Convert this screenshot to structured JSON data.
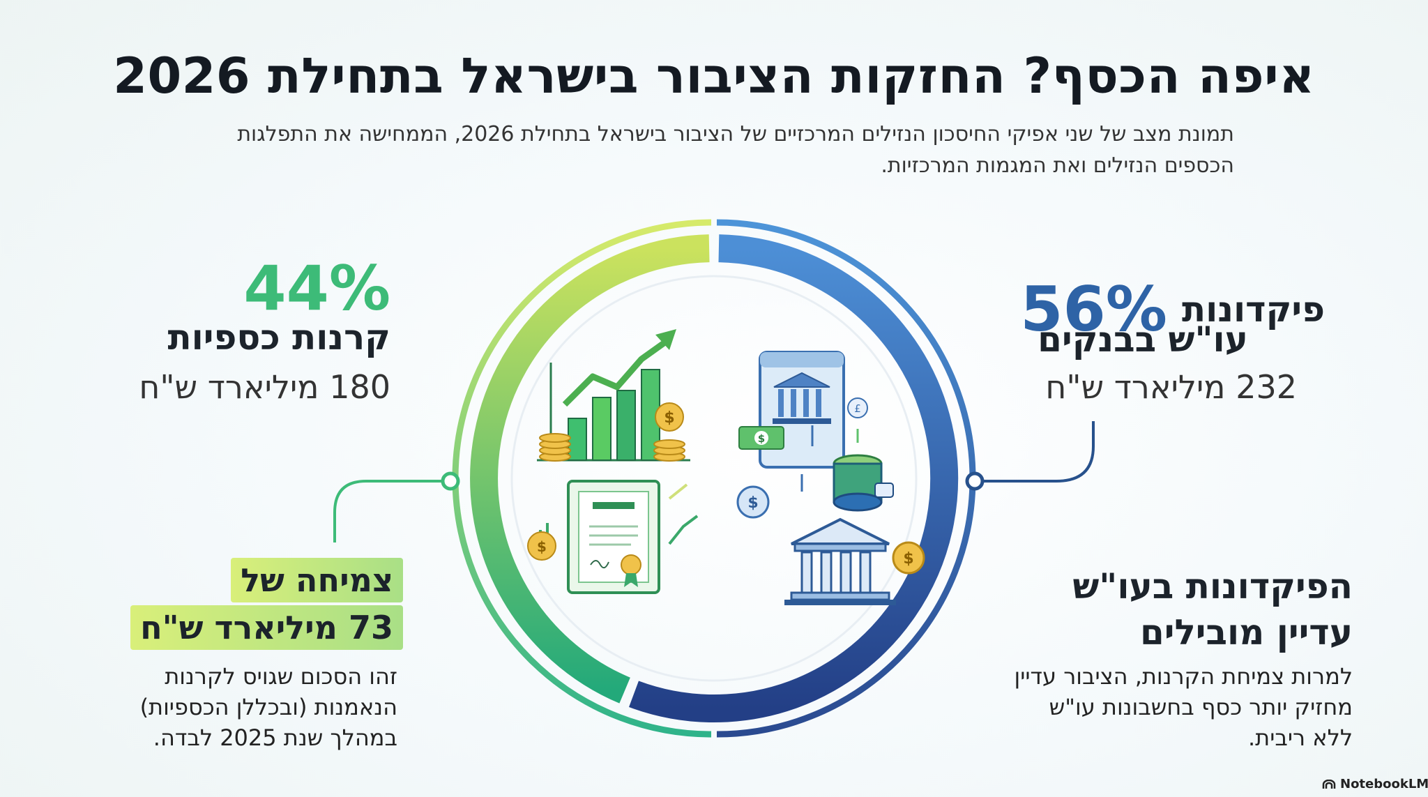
{
  "header": {
    "title": "איפה הכסף? החזקות הציבור בישראל בתחילת 2026",
    "subtitle": "תמונת מצב של שני אפיקי החיסכון הנזילים המרכזיים של הציבור בישראל בתחילת 2026, הממחישה את התפלגות הכספים הנזילים ואת המגמות המרכזיות."
  },
  "chart_data": {
    "type": "donut",
    "title": "איפה הכסף? החזקות הציבור בישראל בתחילת 2026",
    "unit": "מיליארד ש\"ח",
    "slices": [
      {
        "name": "פיקדונות עו\"ש בבנקים",
        "percent": 56,
        "value": 232,
        "color": "#2e63a6"
      },
      {
        "name": "קרנות כספיות",
        "percent": 44,
        "value": 180,
        "color": "#3dbb78"
      }
    ]
  },
  "deposits": {
    "percent_label": "56%",
    "label_line1": "פיקדונות",
    "label_line2": "עו\"ש בבנקים",
    "amount": "232 מיליארד ש\"ח",
    "headline_line1": "הפיקדונות בעו\"ש",
    "headline_line2": "עדיין מובילים",
    "description": "למרות צמיחת הקרנות, הציבור עדיין מחזיק יותר כסף בחשבונות עו\"ש ללא ריבית."
  },
  "funds": {
    "percent_label": "44%",
    "label": "קרנות כספיות",
    "amount": "180 מיליארד ש\"ח",
    "growth_line1": "צמיחה של",
    "growth_line2": "73 מיליארד ש\"ח",
    "description": "זהו הסכום שגויס לקרנות הנאמנות (ובכללן הכספיות) במהלך שנת 2025 לבדה."
  },
  "colors": {
    "deposits_blue": "#2e63a6",
    "funds_green": "#3dbb78",
    "highlight_lime": "#d9ef7a"
  },
  "brand": {
    "name": "NotebookLM"
  }
}
